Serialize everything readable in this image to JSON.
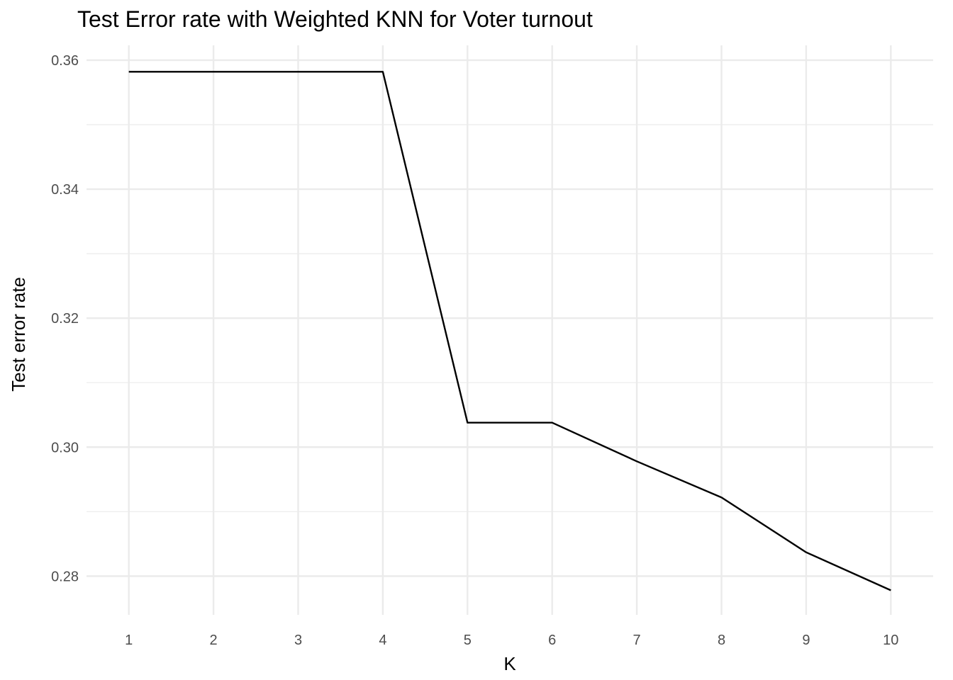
{
  "chart_data": {
    "type": "line",
    "title": "Test Error rate with Weighted KNN for Voter turnout",
    "xlabel": "K",
    "ylabel": "Test error rate",
    "x_ticks": [
      1,
      2,
      3,
      4,
      5,
      6,
      7,
      8,
      9,
      10
    ],
    "y_ticks": [
      "0.28",
      "0.30",
      "0.32",
      "0.34",
      "0.36"
    ],
    "xlim": [
      0.5,
      10.5
    ],
    "ylim": [
      0.274,
      0.3623
    ],
    "grid": true,
    "series": [
      {
        "color": "#000000",
        "x": [
          1,
          2,
          3,
          4,
          5,
          6,
          7,
          8,
          9,
          10
        ],
        "y": [
          0.3582,
          0.3582,
          0.3582,
          0.3582,
          0.3038,
          0.3038,
          0.2978,
          0.2922,
          0.2837,
          0.2778
        ]
      }
    ]
  }
}
